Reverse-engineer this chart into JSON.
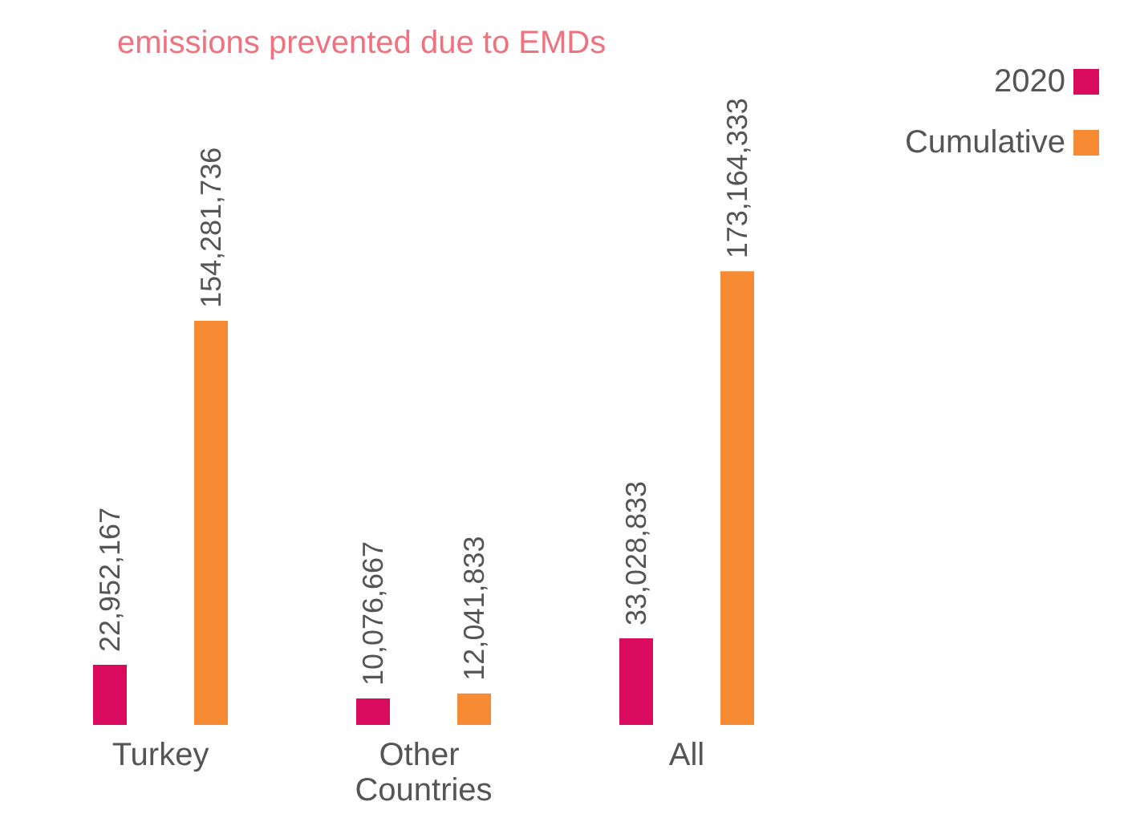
{
  "chart_data": {
    "type": "bar",
    "title": "emissions prevented due to EMDs",
    "categories": [
      "Turkey",
      "Other Countries",
      "All"
    ],
    "series": [
      {
        "name": "2020",
        "color": "#d90b5e",
        "values": [
          22952167,
          10076667,
          33028833
        ],
        "value_labels": [
          "22,952,167",
          "10,076,667",
          "33,028,833"
        ]
      },
      {
        "name": "Cumulative",
        "color": "#f68b33",
        "values": [
          154281736,
          12041833,
          173164333
        ],
        "value_labels": [
          "154,281,736",
          "12,041,833",
          "173,164,333"
        ]
      }
    ],
    "legend": "top right",
    "grid": false
  }
}
